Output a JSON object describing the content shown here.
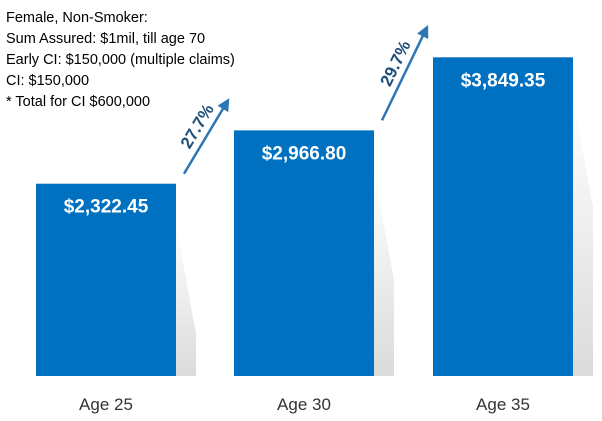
{
  "info": {
    "lines": [
      "Female, Non-Smoker:",
      "Sum Assured: $1mil, till age 70",
      "Early CI: $150,000 (multiple claims)",
      "CI: $150,000",
      "* Total for CI $600,000"
    ]
  },
  "colors": {
    "bar": "#0070c0",
    "arrow": "#2e75b6",
    "growth_text": "#1f4e79"
  },
  "chart_data": {
    "type": "bar",
    "categories": [
      "Age 25",
      "Age 30",
      "Age 35"
    ],
    "values": [
      2322.45,
      2966.8,
      3849.35
    ],
    "value_labels": [
      "$2,322.45",
      "$2,966.80",
      "$3,849.35"
    ],
    "ylim": [
      0,
      4300
    ],
    "grid": false,
    "title": "",
    "xlabel": "",
    "ylabel": "",
    "growth_annotations": [
      {
        "from": "Age 25",
        "to": "Age 30",
        "label": "27.7%"
      },
      {
        "from": "Age 30",
        "to": "Age 35",
        "label": "29.7%"
      }
    ]
  }
}
